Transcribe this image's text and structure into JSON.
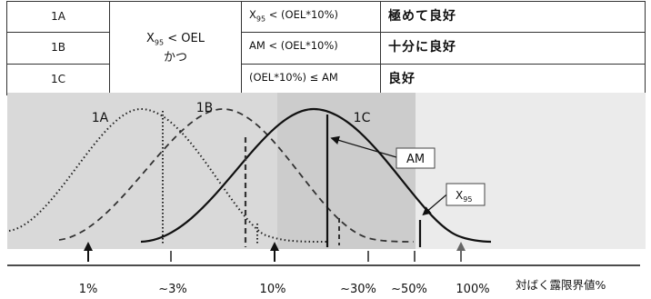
{
  "table": {
    "condition": {
      "main": "X",
      "sub": "95",
      "rest": " < OEL",
      "line2": "かつ"
    },
    "rows": [
      {
        "code": "1A",
        "ineq_prefix": "X",
        "ineq_sub": "95",
        "ineq_rest": " < (OEL*10%)",
        "rating": "極めて良好"
      },
      {
        "code": "1B",
        "ineq_prefix": "",
        "ineq_sub": "",
        "ineq_rest": "AM < (OEL*10%)",
        "rating": "十分に良好"
      },
      {
        "code": "1C",
        "ineq_prefix": "",
        "ineq_sub": "",
        "ineq_rest": "(OEL*10%) ≤ AM",
        "rating": "良好"
      }
    ]
  },
  "chart_data": {
    "type": "diagram",
    "curves": [
      {
        "label": "1A",
        "line_style": "dotted"
      },
      {
        "label": "1B",
        "line_style": "dashed"
      },
      {
        "label": "1C",
        "line_style": "solid"
      }
    ],
    "callouts": {
      "am": "AM",
      "x95": {
        "main": "X",
        "sub": "95"
      }
    },
    "axis": {
      "ticks": [
        "1%",
        "~3%",
        "10%",
        "~30%",
        "~50%",
        "100%"
      ],
      "label": "対ばく露限界値%"
    },
    "arrow_color": "#666666",
    "band_colors": [
      "#d9d9d9",
      "#cccccc",
      "#ebebeb"
    ]
  }
}
